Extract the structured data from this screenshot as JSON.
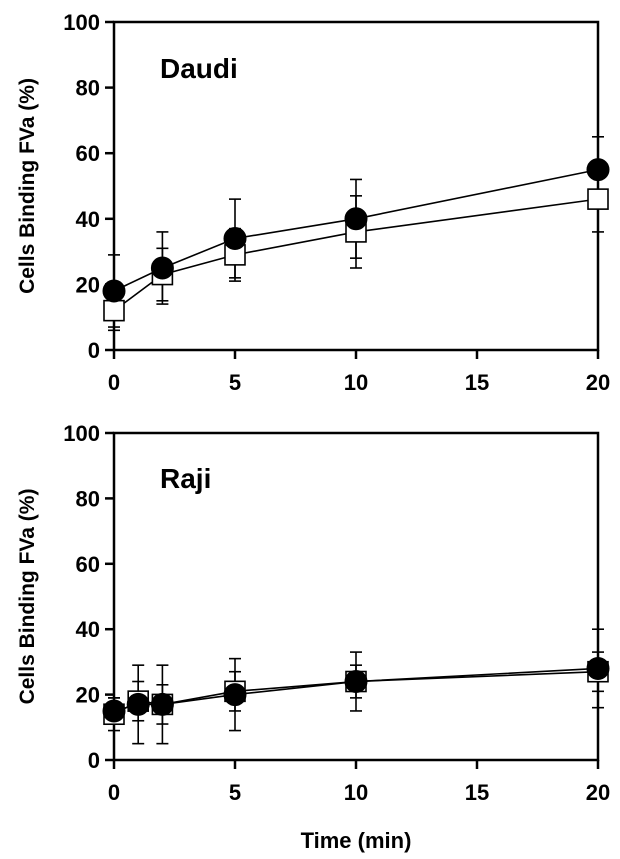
{
  "chart_data": [
    {
      "type": "line",
      "title": "Daudi",
      "xlabel": "",
      "ylabel": "Cells Binding FVa (%)",
      "xlim": [
        0,
        20
      ],
      "ylim": [
        0,
        100
      ],
      "xticks": [
        0,
        5,
        10,
        15,
        20
      ],
      "yticks": [
        0,
        20,
        40,
        60,
        80,
        100
      ],
      "grid": false,
      "series": [
        {
          "marker": "open-square",
          "x": [
            0,
            2,
            5,
            10,
            20
          ],
          "values": [
            12,
            23,
            29,
            36,
            46
          ],
          "error": [
            6,
            8,
            8,
            11,
            10
          ]
        },
        {
          "marker": "filled-circle",
          "x": [
            0,
            2,
            5,
            10,
            20
          ],
          "values": [
            18,
            25,
            34,
            40,
            55
          ],
          "error": [
            11,
            11,
            12,
            12,
            10
          ]
        }
      ]
    },
    {
      "type": "line",
      "title": "Raji",
      "xlabel": "Time (min)",
      "ylabel": "Cells Binding FVa (%)",
      "xlim": [
        0,
        20
      ],
      "ylim": [
        0,
        100
      ],
      "xticks": [
        0,
        5,
        10,
        15,
        20
      ],
      "yticks": [
        0,
        20,
        40,
        60,
        80,
        100
      ],
      "grid": false,
      "series": [
        {
          "marker": "open-square",
          "x": [
            0,
            1,
            2,
            5,
            10,
            20
          ],
          "values": [
            14,
            18,
            17,
            21,
            24,
            27
          ],
          "error": [
            5,
            6,
            6,
            6,
            5,
            6
          ]
        },
        {
          "marker": "filled-circle",
          "x": [
            0,
            1,
            2,
            5,
            10,
            20
          ],
          "values": [
            15,
            17,
            17,
            20,
            24,
            28
          ],
          "error": [
            4,
            12,
            12,
            11,
            9,
            12
          ]
        }
      ]
    }
  ]
}
